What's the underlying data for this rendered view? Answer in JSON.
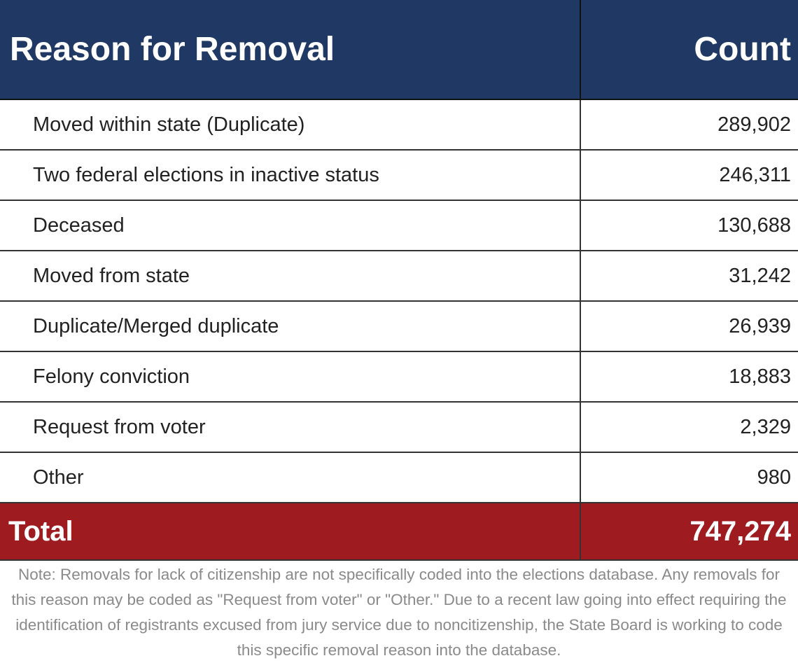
{
  "table": {
    "headers": {
      "reason": "Reason for Removal",
      "count": "Count"
    },
    "rows": [
      {
        "reason": "Moved within state (Duplicate)",
        "count": "289,902"
      },
      {
        "reason": "Two federal elections in inactive status",
        "count": "246,311"
      },
      {
        "reason": "Deceased",
        "count": "130,688"
      },
      {
        "reason": "Moved from state",
        "count": "31,242"
      },
      {
        "reason": "Duplicate/Merged duplicate",
        "count": "26,939"
      },
      {
        "reason": "Felony conviction",
        "count": "18,883"
      },
      {
        "reason": "Request from voter",
        "count": "2,329"
      },
      {
        "reason": "Other",
        "count": "980"
      }
    ],
    "total": {
      "label": "Total",
      "count": "747,274"
    }
  },
  "note": "Note: Removals for lack of citizenship are not specifically coded into the elections database. Any removals for this reason may be coded as \"Request from voter\" or \"Other.\" Due to a recent law going into effect requiring the identification of registrants excused from jury service due to noncitizenship, the State Board is working to code this specific removal reason into the database.",
  "colors": {
    "header": "#1f3864",
    "total": "#9e1b1f",
    "note": "#8a8a8a"
  }
}
